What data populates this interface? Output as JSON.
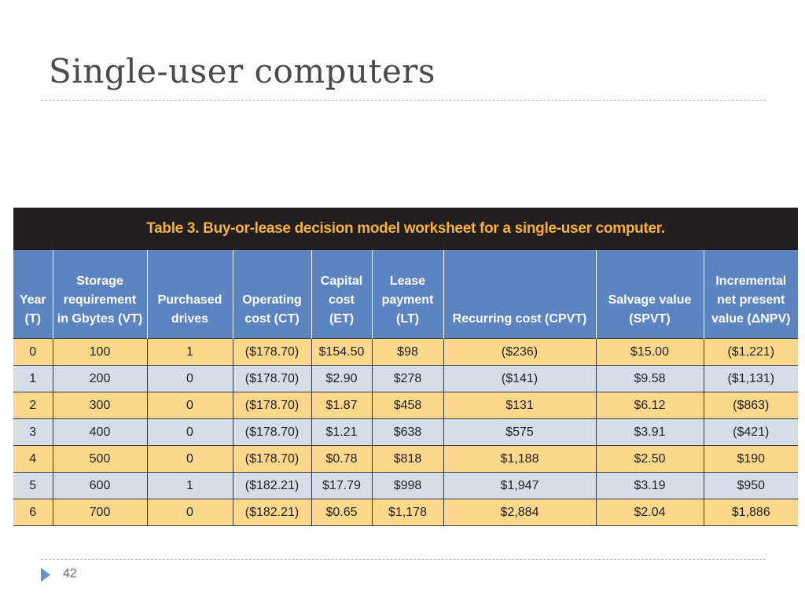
{
  "slide": {
    "title": "Single-user computers",
    "page_number": "42"
  },
  "table": {
    "caption": "Table 3. Buy-or-lease decision model worksheet for a single-user computer.",
    "headers": [
      [
        "Year",
        "(T)"
      ],
      [
        "Storage",
        "requirement",
        "in Gbytes (VT)"
      ],
      [
        "Purchased",
        "drives"
      ],
      [
        "Operating",
        "cost (CT)"
      ],
      [
        "Capital",
        "cost",
        "(ET)"
      ],
      [
        "Lease",
        "payment",
        "(LT)"
      ],
      [
        "Recurring cost (CPVT)"
      ],
      [
        "Salvage value",
        "(SPVT)"
      ],
      [
        "Incremental",
        "net present",
        "value (ΔNPV)"
      ]
    ],
    "rows": [
      [
        "0",
        "100",
        "1",
        "($178.70)",
        "$154.50",
        "$98",
        "($236)",
        "$15.00",
        "($1,221)"
      ],
      [
        "1",
        "200",
        "0",
        "($178.70)",
        "$2.90",
        "$278",
        "($141)",
        "$9.58",
        "($1,131)"
      ],
      [
        "2",
        "300",
        "0",
        "($178.70)",
        "$1.87",
        "$458",
        "$131",
        "$6.12",
        "($863)"
      ],
      [
        "3",
        "400",
        "0",
        "($178.70)",
        "$1.21",
        "$638",
        "$575",
        "$3.91",
        "($421)"
      ],
      [
        "4",
        "500",
        "0",
        "($178.70)",
        "$0.78",
        "$818",
        "$1,188",
        "$2.50",
        "$190"
      ],
      [
        "5",
        "600",
        "1",
        "($182.21)",
        "$17.79",
        "$998",
        "$1,947",
        "$3.19",
        "$950"
      ],
      [
        "6",
        "700",
        "0",
        "($182.21)",
        "$0.65",
        "$1,178",
        "$2,884",
        "$2.04",
        "$1,886"
      ]
    ]
  },
  "colors": {
    "caption_bg": "#231f20",
    "caption_text": "#f6b23a",
    "header_bg": "#5b84c0",
    "row_odd": "#fcd88c",
    "row_even": "#d6dde9",
    "accent_arrow": "#6e8fc1"
  }
}
